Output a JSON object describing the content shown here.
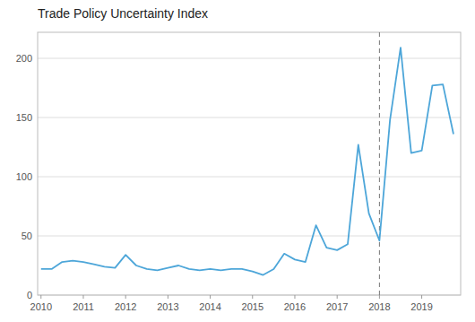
{
  "chart_data": {
    "type": "line",
    "title": "Trade Policy Uncertainty Index",
    "x": [
      2010.0,
      2010.25,
      2010.5,
      2010.75,
      2011.0,
      2011.25,
      2011.5,
      2011.75,
      2012.0,
      2012.25,
      2012.5,
      2012.75,
      2013.0,
      2013.25,
      2013.5,
      2013.75,
      2014.0,
      2014.25,
      2014.5,
      2014.75,
      2015.0,
      2015.25,
      2015.5,
      2015.75,
      2016.0,
      2016.25,
      2016.5,
      2016.75,
      2017.0,
      2017.25,
      2017.5,
      2017.75,
      2018.0,
      2018.25,
      2018.5,
      2018.75,
      2019.0,
      2019.25,
      2019.5,
      2019.75
    ],
    "values": [
      22,
      22,
      28,
      29,
      28,
      26,
      24,
      23,
      34,
      25,
      22,
      21,
      23,
      25,
      22,
      21,
      22,
      21,
      22,
      22,
      20,
      17,
      22,
      35,
      30,
      28,
      59,
      40,
      38,
      43,
      127,
      69,
      46,
      148,
      209,
      120,
      122,
      177,
      178,
      136
    ],
    "color": "#4da6d9",
    "xlim": [
      2009.92,
      2019.92
    ],
    "ylim": [
      0,
      222
    ],
    "xticks": [
      2010,
      2011,
      2012,
      2013,
      2014,
      2015,
      2016,
      2017,
      2018,
      2019
    ],
    "yticks": [
      0,
      50,
      100,
      150,
      200
    ],
    "grid": true,
    "reference_lines": [
      {
        "x": 2018.0,
        "color": "#777777",
        "line_style": "dashed"
      }
    ]
  }
}
